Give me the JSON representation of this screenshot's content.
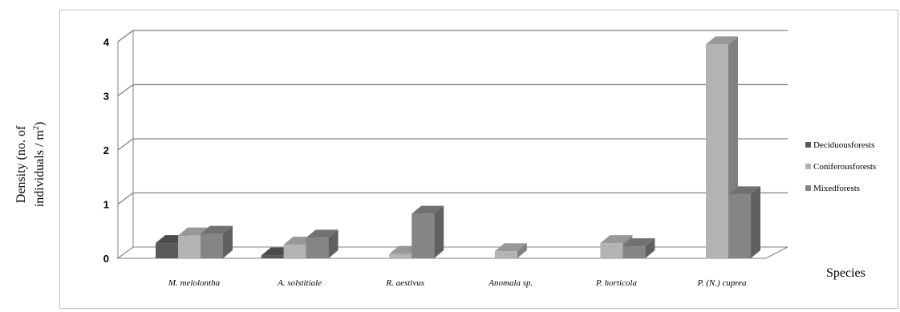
{
  "chart_data": {
    "type": "bar",
    "style": "3d-clustered-column",
    "categories": [
      "M. melolontha",
      "A. solstitiale",
      "R. aestivus",
      "Anomala sp.",
      "P. horticola",
      "P. (N.) cupreа"
    ],
    "series": [
      {
        "name": "Deciduousforests",
        "color": "#595959",
        "values": [
          0.28,
          0.05,
          0,
          0,
          0,
          0
        ]
      },
      {
        "name": "Coniferousforests",
        "color": "#b3b3b3",
        "values": [
          0.42,
          0.25,
          0.08,
          0.13,
          0.28,
          3.95
        ]
      },
      {
        "name": "Mixedforests",
        "color": "#858585",
        "values": [
          0.45,
          0.38,
          0.82,
          0,
          0.22,
          1.18
        ]
      }
    ],
    "ylabel_line1": "Density (no. of",
    "ylabel_line2": "individuals / m",
    "ylabel_sup": "2",
    "ylabel_end": ")",
    "xlabel": "Species",
    "ylim": [
      0,
      4
    ],
    "yticks": [
      "0",
      "1",
      "2",
      "3",
      "4"
    ],
    "grid": true,
    "legend_position": "right"
  }
}
